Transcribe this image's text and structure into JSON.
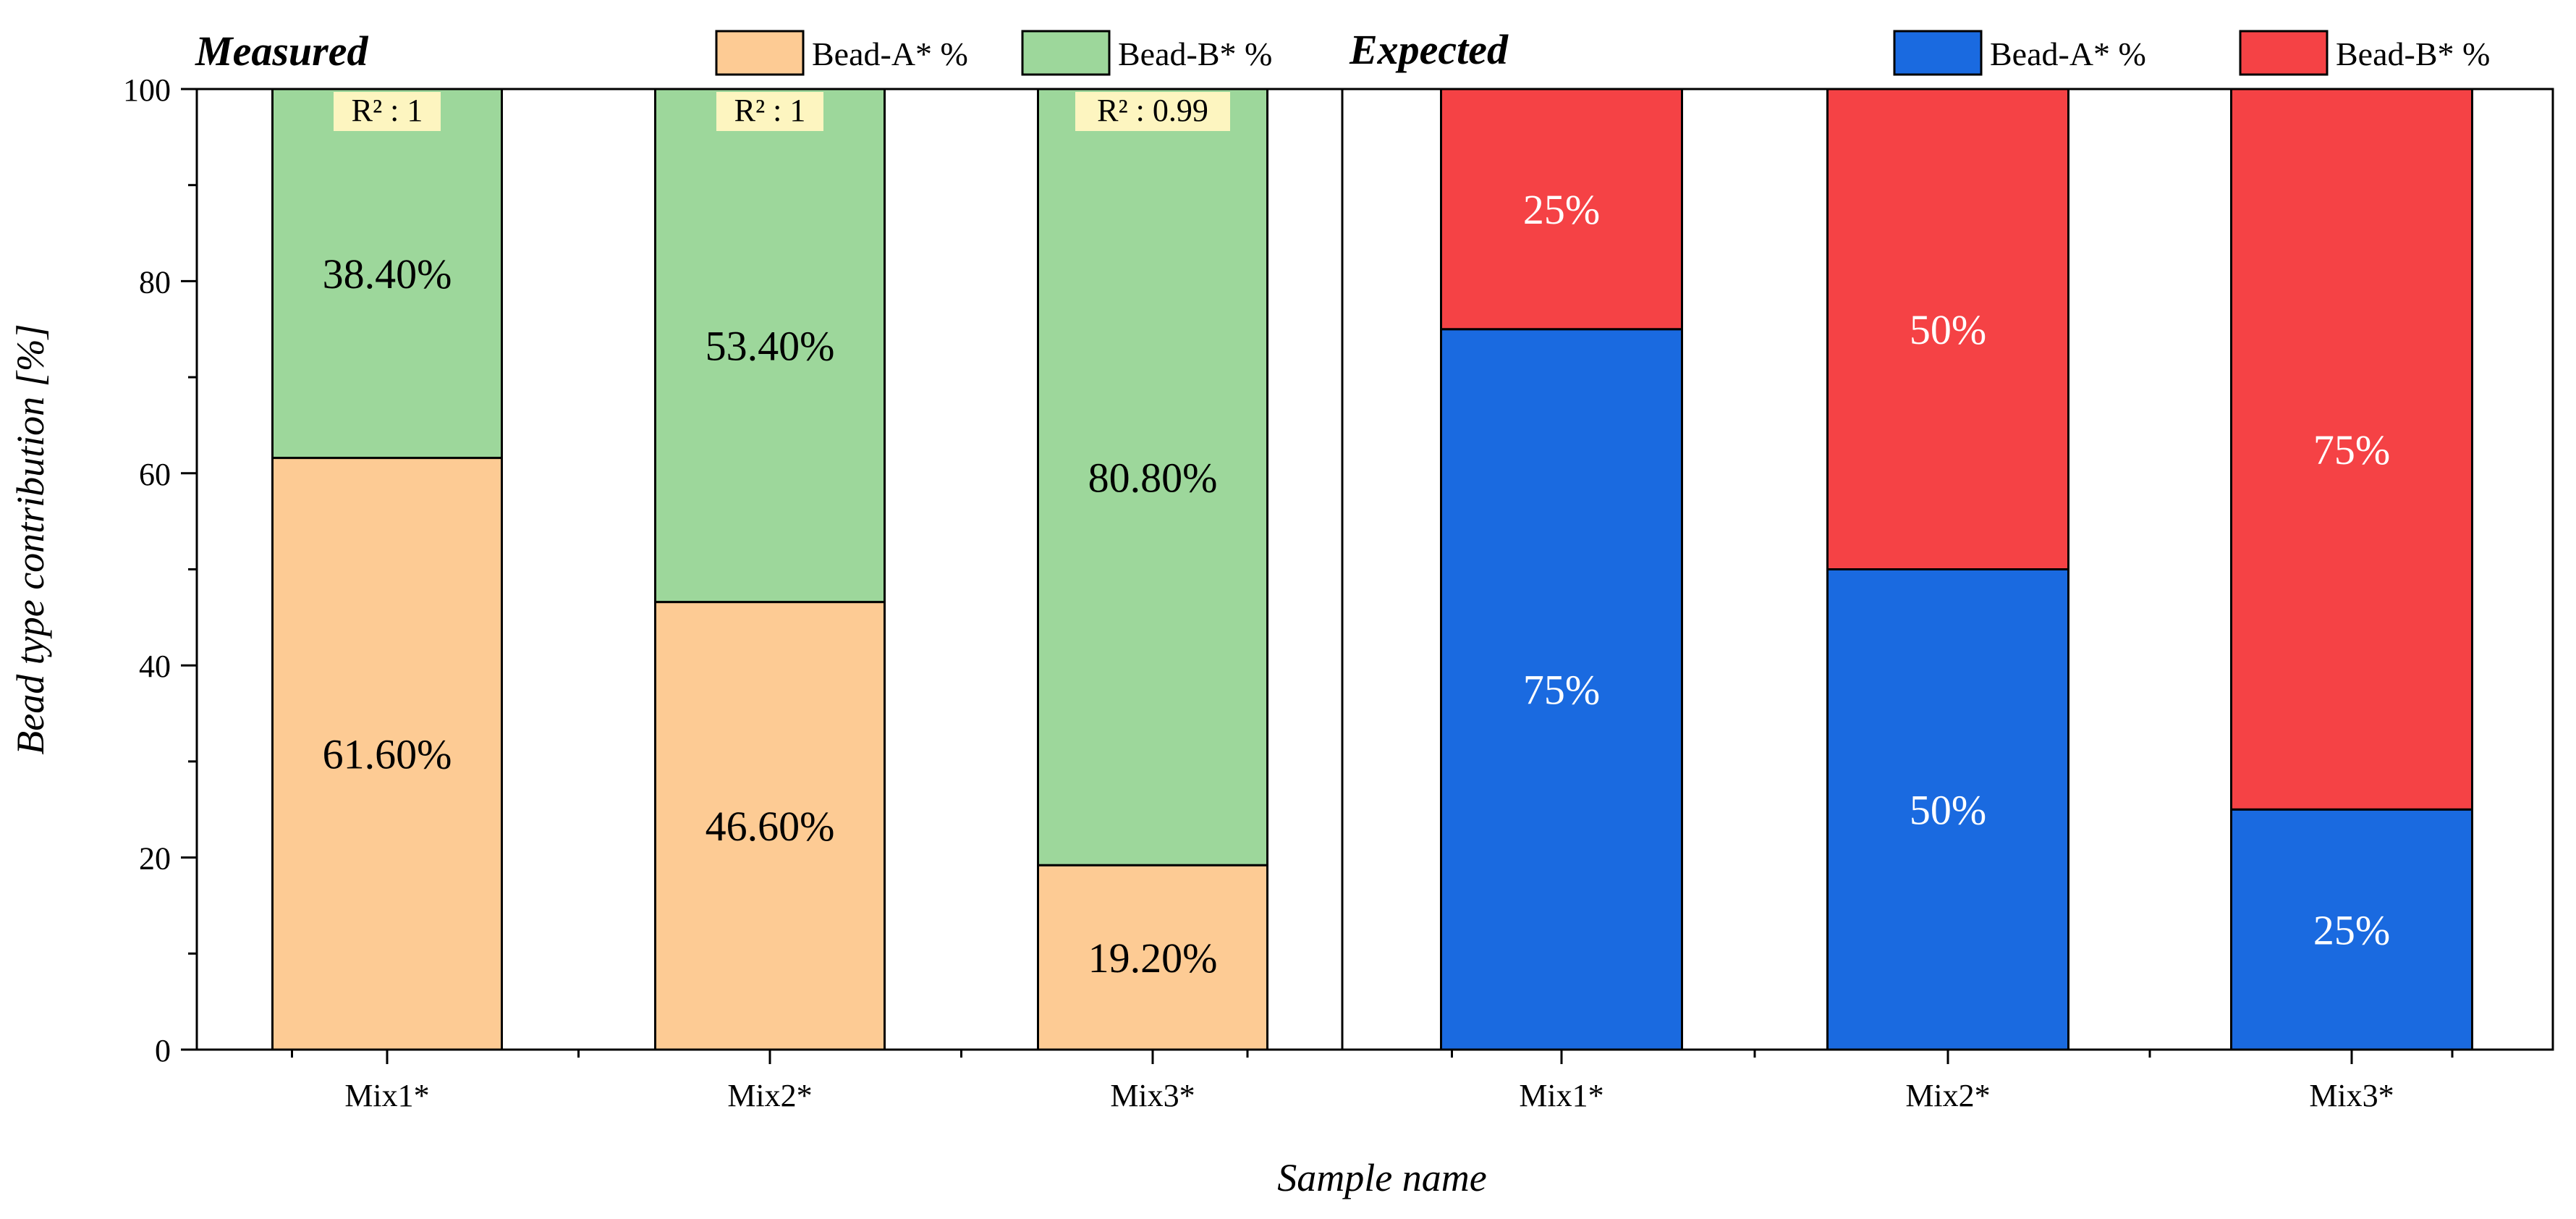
{
  "chart_data": {
    "type": "bar",
    "stacked": true,
    "ylabel": "Bead type contribution [%]",
    "xlabel": "Sample name",
    "ylim": [
      0,
      100
    ],
    "yticks": [
      0,
      20,
      40,
      60,
      80,
      100
    ],
    "y_tick_labels": [
      "0",
      "20",
      "40",
      "60",
      "80",
      "100"
    ],
    "panels": [
      {
        "title": "Measured",
        "categories": [
          "Mix1*",
          "Mix2*",
          "Mix3*"
        ],
        "series": [
          {
            "name": "Bead-A* %",
            "color": "#fdcb94",
            "values": [
              61.6,
              46.6,
              19.2
            ],
            "labels": [
              "61.60%",
              "46.60%",
              "19.20%"
            ],
            "label_color": "#000000"
          },
          {
            "name": "Bead-B* %",
            "color": "#9dd79b",
            "values": [
              38.4,
              53.4,
              80.8
            ],
            "labels": [
              "38.40%",
              "53.40%",
              "80.80%"
            ],
            "label_color": "#000000"
          }
        ],
        "annotations": [
          "R² : 1",
          "R² : 1",
          "R² : 0.99"
        ],
        "annotation_bg": "#fdf5c0"
      },
      {
        "title": "Expected",
        "categories": [
          "Mix1*",
          "Mix2*",
          "Mix3*"
        ],
        "series": [
          {
            "name": "Bead-A* %",
            "color": "#1a6ae0",
            "values": [
              75,
              50,
              25
            ],
            "labels": [
              "75%",
              "50%",
              "25%"
            ],
            "label_color": "#ffffff"
          },
          {
            "name": "Bead-B* %",
            "color": "#f54245",
            "values": [
              25,
              50,
              75
            ],
            "labels": [
              "25%",
              "50%",
              "75%"
            ],
            "label_color": "#ffffff"
          }
        ]
      }
    ]
  }
}
